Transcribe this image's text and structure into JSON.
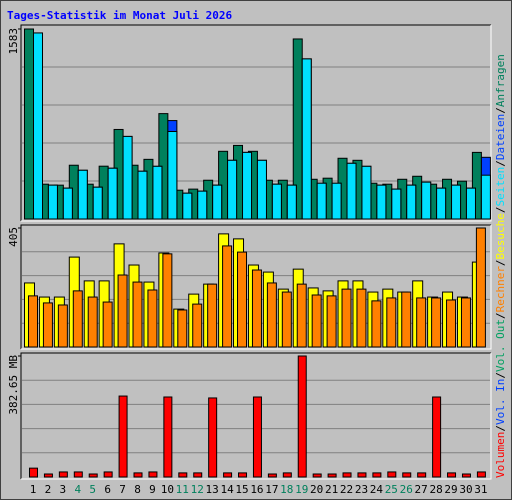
{
  "chart_data": [
    {
      "type": "bar",
      "title": "Tages-Statistik im Monat Juli 2026",
      "categories": [
        "1",
        "2",
        "3",
        "4",
        "5",
        "6",
        "7",
        "8",
        "9",
        "10",
        "11",
        "12",
        "13",
        "14",
        "15",
        "16",
        "17",
        "18",
        "19",
        "20",
        "21",
        "22",
        "23",
        "24",
        "25",
        "26",
        "27",
        "28",
        "29",
        "30",
        "31"
      ],
      "category_colors": [
        "#000000",
        "#000000",
        "#000000",
        "#00805c",
        "#00805c",
        "#000000",
        "#000000",
        "#000000",
        "#000000",
        "#000000",
        "#00805c",
        "#00805c",
        "#000000",
        "#000000",
        "#000000",
        "#000000",
        "#000000",
        "#00805c",
        "#00805c",
        "#000000",
        "#000000",
        "#000000",
        "#000000",
        "#000000",
        "#00805c",
        "#00805c",
        "#000000",
        "#000000",
        "#000000",
        "#000000",
        "#000000"
      ],
      "series": [
        {
          "name": "Anfragen",
          "color": "#00805c",
          "values": [
            1583,
            290,
            282,
            448,
            290,
            440,
            746,
            448,
            497,
            878,
            240,
            249,
            323,
            564,
            613,
            564,
            323,
            323,
            1500,
            331,
            340,
            506,
            489,
            298,
            290,
            331,
            356,
            290,
            331,
            315,
            555
          ]
        },
        {
          "name": "Dateien",
          "color": "#0040ff",
          "values": [
            1550,
            282,
            257,
            406,
            265,
            423,
            688,
            398,
            439,
            820,
            215,
            232,
            282,
            489,
            555,
            489,
            290,
            282,
            1334,
            298,
            298,
            464,
            439,
            282,
            249,
            282,
            307,
            257,
            282,
            257,
            514
          ]
        },
        {
          "name": "Seiten",
          "color": "#00e0ff",
          "values": [
            1550,
            282,
            257,
            406,
            265,
            423,
            688,
            398,
            439,
            729,
            215,
            232,
            282,
            489,
            555,
            489,
            290,
            282,
            1334,
            298,
            298,
            464,
            439,
            282,
            249,
            282,
            307,
            257,
            282,
            257,
            365
          ]
        }
      ],
      "ylim": [
        0,
        1583
      ],
      "yticks": [
        1583
      ]
    },
    {
      "type": "bar",
      "series": [
        {
          "name": "Besuche",
          "color": "#ffff00",
          "values": [
            218,
            170,
            170,
            306,
            225,
            225,
            351,
            279,
            221,
            320,
            129,
            180,
            214,
            385,
            368,
            279,
            255,
            197,
            265,
            201,
            191,
            225,
            225,
            187,
            197,
            187,
            225,
            170,
            187,
            170,
            289
          ]
        },
        {
          "name": "Rechner",
          "color": "#ff8000",
          "values": [
            174,
            150,
            143,
            191,
            170,
            153,
            245,
            221,
            194,
            317,
            126,
            146,
            214,
            344,
            323,
            262,
            218,
            187,
            214,
            177,
            174,
            197,
            197,
            157,
            167,
            187,
            167,
            167,
            160,
            167,
            405
          ]
        }
      ],
      "ylim": [
        0,
        405
      ],
      "yticks": [
        405
      ]
    },
    {
      "type": "bar",
      "series": [
        {
          "name": "Volumen",
          "color": "#ff0000",
          "values": [
            28,
            9.5,
            16,
            16,
            9.5,
            16,
            256,
            13,
            16,
            253,
            13,
            13,
            250,
            13,
            13,
            253,
            9.5,
            13,
            382.65,
            9.5,
            9.5,
            13,
            13,
            13,
            16,
            13,
            13,
            253,
            13,
            9.5,
            16
          ]
        },
        {
          "name": "Vol. In",
          "color": "#0040ff",
          "values": [
            null,
            null,
            null,
            null,
            null,
            null,
            null,
            null,
            null,
            null,
            null,
            null,
            null,
            null,
            null,
            null,
            null,
            null,
            null,
            null,
            null,
            null,
            null,
            null,
            null,
            null,
            null,
            null,
            null,
            null,
            null
          ]
        },
        {
          "name": "Vol. Out",
          "color": "#00a060",
          "values": [
            null,
            null,
            null,
            null,
            null,
            null,
            null,
            null,
            null,
            null,
            null,
            null,
            null,
            null,
            null,
            null,
            null,
            null,
            null,
            null,
            null,
            null,
            null,
            null,
            null,
            null,
            null,
            null,
            null,
            null,
            null
          ]
        }
      ],
      "ylim": [
        0,
        382.65
      ],
      "yticks": [
        {
          "value": 382.65,
          "label": "382.65 MB"
        }
      ]
    }
  ]
}
